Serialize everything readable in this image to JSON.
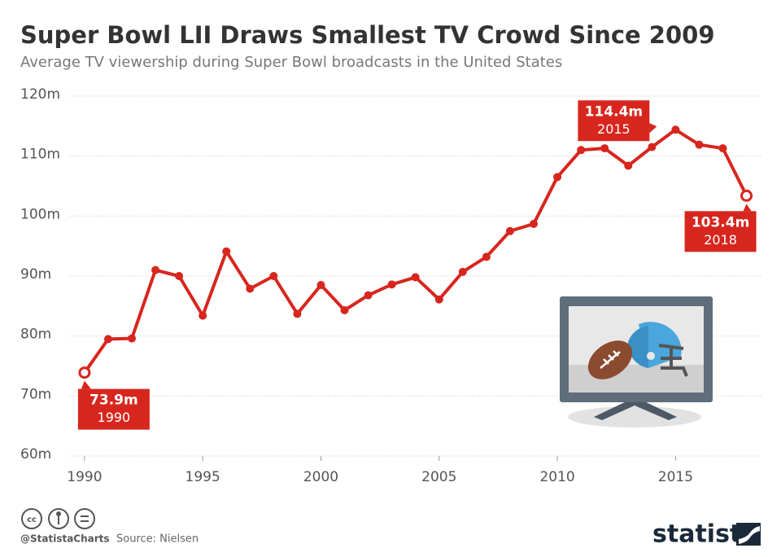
{
  "chart_data": {
    "type": "line",
    "title": "Super Bowl LII Draws Smallest TV Crowd Since 2009",
    "subtitle": "Average TV viewership during Super Bowl broadcasts in the United States",
    "x": [
      1990,
      1991,
      1992,
      1993,
      1994,
      1995,
      1996,
      1997,
      1998,
      1999,
      2000,
      2001,
      2002,
      2003,
      2004,
      2005,
      2006,
      2007,
      2008,
      2009,
      2010,
      2011,
      2012,
      2013,
      2014,
      2015,
      2016,
      2017,
      2018
    ],
    "series": [
      {
        "name": "Average TV viewership",
        "color": "#d7261e",
        "values": [
          73.9,
          79.5,
          79.6,
          91.0,
          90.0,
          83.4,
          94.1,
          87.9,
          90.0,
          83.7,
          88.5,
          84.3,
          86.8,
          88.6,
          89.8,
          86.1,
          90.7,
          93.2,
          97.5,
          98.7,
          106.5,
          111.0,
          111.3,
          108.4,
          111.5,
          114.4,
          111.9,
          111.3,
          103.4
        ],
        "value_labels": [
          "73.9m",
          null,
          null,
          null,
          null,
          null,
          null,
          null,
          null,
          null,
          null,
          null,
          null,
          null,
          null,
          null,
          null,
          null,
          null,
          null,
          null,
          null,
          null,
          null,
          null,
          "114.4m",
          null,
          null,
          "103.4m"
        ]
      }
    ],
    "xlim": [
      1989.35,
      2018.6
    ],
    "xticks": [
      1990,
      1995,
      2000,
      2005,
      2010,
      2015
    ],
    "ylim": [
      60,
      120
    ],
    "yticks": [
      {
        "value": 60,
        "label": "60m"
      },
      {
        "value": 70,
        "label": "70m"
      },
      {
        "value": 80,
        "label": "80m"
      },
      {
        "value": 90,
        "label": "90m"
      },
      {
        "value": 100,
        "label": "100m"
      },
      {
        "value": 110,
        "label": "110m"
      },
      {
        "value": 120,
        "label": "120m"
      }
    ],
    "grid": true
  },
  "footer": {
    "handle": "@StatistaCharts",
    "source": "Source: Nielsen",
    "brand": "statista"
  }
}
